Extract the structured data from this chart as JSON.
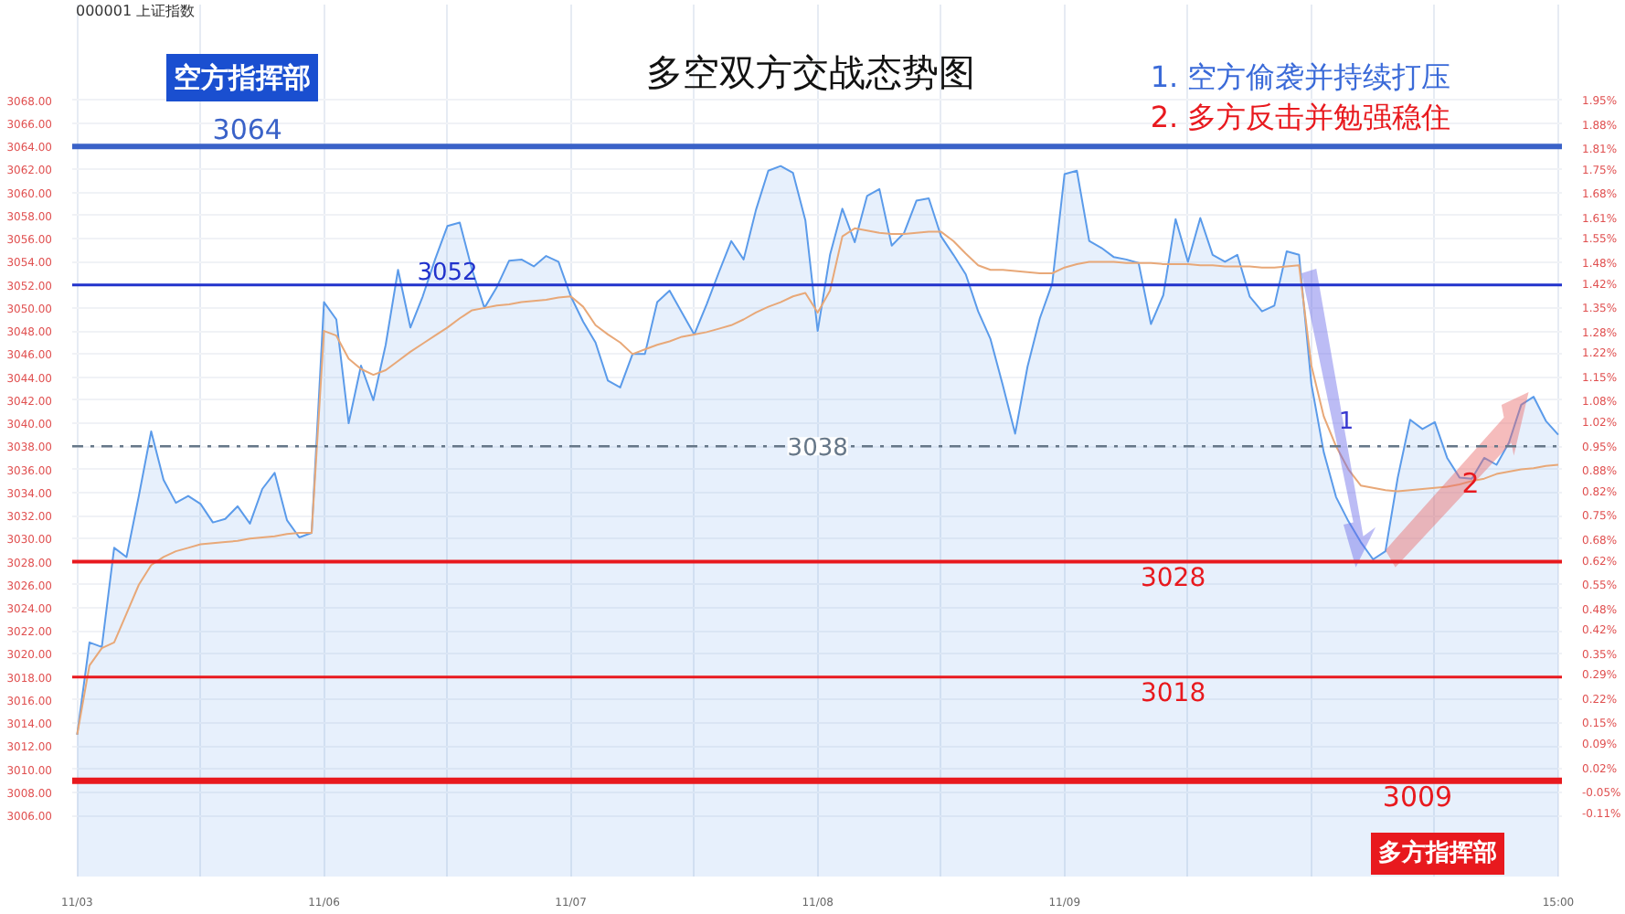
{
  "chart_data": {
    "type": "area",
    "title": "多空双方交战态势图",
    "subtitle": "000001 上证指数",
    "annotations": [
      "空方指挥部",
      "多方指挥部",
      "1. 空方偷袭并持续打压",
      "2. 多方反击并勉强稳住",
      "1",
      "2"
    ],
    "categories": [
      "11/03",
      null,
      null,
      null,
      null,
      null,
      null,
      null,
      null,
      null,
      null,
      null,
      null,
      null,
      null,
      null,
      null,
      null,
      null,
      null,
      "11/06",
      null,
      null,
      null,
      null,
      null,
      null,
      null,
      null,
      null,
      null,
      null,
      null,
      null,
      null,
      null,
      null,
      null,
      null,
      null,
      "11/07",
      null,
      null,
      null,
      null,
      null,
      null,
      null,
      null,
      null,
      null,
      null,
      null,
      null,
      null,
      null,
      null,
      null,
      null,
      null,
      "11/08",
      null,
      null,
      null,
      null,
      null,
      null,
      null,
      null,
      null,
      null,
      null,
      null,
      null,
      null,
      null,
      null,
      null,
      null,
      null,
      "11/09",
      null,
      null,
      null,
      null,
      null,
      null,
      null,
      null,
      null,
      null,
      null,
      null,
      null,
      null,
      null,
      null,
      null,
      null,
      null,
      null,
      null,
      null,
      null,
      null,
      null,
      null,
      null,
      null,
      null,
      null,
      null,
      null,
      null,
      null,
      null,
      null,
      null,
      null,
      null,
      "15:00"
    ],
    "series": [
      {
        "color": "#5b9bea",
        "values": [
          3013,
          3021,
          3020.6,
          3029.2,
          3028.4,
          3033.7,
          3039.3,
          3035.1,
          3033.1,
          3033.7,
          3033,
          3031.4,
          3031.7,
          3032.8,
          3031.3,
          3034.3,
          3035.7,
          3031.6,
          3030.1,
          3030.5,
          3050.5,
          3049,
          3040,
          3045,
          3042,
          3046.8,
          3053.3,
          3048.3,
          3051,
          3054.2,
          3057.1,
          3057.4,
          3053.3,
          3050,
          3051.8,
          3054.1,
          3054.2,
          3053.6,
          3054.5,
          3054,
          3051,
          3048.8,
          3047,
          3043.7,
          3043.1,
          3046,
          3046,
          3050.5,
          3051.5,
          3049.6,
          3047.7,
          3050.3,
          3053.1,
          3055.8,
          3054.2,
          3058.5,
          3061.9,
          3062.3,
          3061.7,
          3057.6,
          3048,
          3054.6,
          3058.6,
          3055.7,
          3059.7,
          3060.3,
          3055.4,
          3056.5,
          3059.3,
          3059.5,
          3056.2,
          3054.6,
          3052.9,
          3049.7,
          3047.3,
          3043.3,
          3039.1,
          3044.9,
          3049.1,
          3052.1,
          3061.6,
          3061.9,
          3055.8,
          3055.2,
          3054.4,
          3054.2,
          3053.9,
          3048.6,
          3051.1,
          3057.7,
          3054,
          3057.8,
          3054.6,
          3054,
          3054.6,
          3051,
          3049.7,
          3050.2,
          3054.9,
          3054.6,
          3043.4,
          3037.5,
          3033.6,
          3031.5,
          3029.7,
          3028.2,
          3028.9,
          3035.3,
          3040.3,
          3039.5,
          3040.1,
          3037,
          3035.3,
          3035.2,
          3037,
          3036.4,
          3038.3,
          3041.6,
          3042.3,
          3040.2,
          3039
        ]
      },
      {
        "type": "line",
        "color": "#e8a878",
        "values": [
          3013,
          3019,
          3020.5,
          3021,
          3023.5,
          3026,
          3027.7,
          3028.4,
          3028.9,
          3029.2,
          3029.5,
          3029.6,
          3029.7,
          3029.8,
          3030,
          3030.1,
          3030.2,
          3030.4,
          3030.5,
          3030.5,
          3048,
          3047.6,
          3045.6,
          3044.7,
          3044.2,
          3044.6,
          3045.4,
          3046.2,
          3046.9,
          3047.6,
          3048.3,
          3049.1,
          3049.8,
          3050,
          3050.2,
          3050.3,
          3050.5,
          3050.6,
          3050.7,
          3050.9,
          3051,
          3050.1,
          3048.5,
          3047.7,
          3047,
          3046,
          3046.4,
          3046.8,
          3047.1,
          3047.5,
          3047.7,
          3047.9,
          3048.2,
          3048.5,
          3049,
          3049.6,
          3050.1,
          3050.5,
          3051,
          3051.3,
          3049.6,
          3051.5,
          3056.2,
          3056.9,
          3056.7,
          3056.5,
          3056.4,
          3056.4,
          3056.5,
          3056.6,
          3056.6,
          3055.8,
          3054.7,
          3053.7,
          3053.3,
          3053.3,
          3053.2,
          3053.1,
          3053,
          3053,
          3053.5,
          3053.8,
          3054,
          3054,
          3054,
          3053.9,
          3053.9,
          3053.9,
          3053.8,
          3053.8,
          3053.8,
          3053.7,
          3053.7,
          3053.6,
          3053.6,
          3053.6,
          3053.5,
          3053.5,
          3053.6,
          3053.7,
          3045,
          3040.6,
          3038,
          3036,
          3034.6,
          3034.4,
          3034.2,
          3034.1,
          3034.2,
          3034.3,
          3034.4,
          3034.5,
          3034.7,
          3035,
          3035.2,
          3035.6,
          3035.8,
          3036,
          3036.1,
          3036.3,
          3036.4
        ]
      }
    ],
    "ylim": [
      3000.7,
      3076.3
    ],
    "yticks": [
      {
        "value": 3006,
        "label": "3006.00"
      },
      {
        "value": 3008,
        "label": "3008.00"
      },
      {
        "value": 3010,
        "label": "3010.00"
      },
      {
        "value": 3012,
        "label": "3012.00"
      },
      {
        "value": 3014,
        "label": "3014.00"
      },
      {
        "value": 3016,
        "label": "3016.00"
      },
      {
        "value": 3018,
        "label": "3018.00"
      },
      {
        "value": 3020,
        "label": "3020.00"
      },
      {
        "value": 3022,
        "label": "3022.00"
      },
      {
        "value": 3024,
        "label": "3024.00"
      },
      {
        "value": 3026,
        "label": "3026.00"
      },
      {
        "value": 3028,
        "label": "3028.00"
      },
      {
        "value": 3030,
        "label": "3030.00"
      },
      {
        "value": 3032,
        "label": "3032.00"
      },
      {
        "value": 3034,
        "label": "3034.00"
      },
      {
        "value": 3036,
        "label": "3036.00"
      },
      {
        "value": 3038,
        "label": "3038.00"
      },
      {
        "value": 3040,
        "label": "3040.00"
      },
      {
        "value": 3042,
        "label": "3042.00"
      },
      {
        "value": 3044,
        "label": "3044.00"
      },
      {
        "value": 3046,
        "label": "3046.00"
      },
      {
        "value": 3048,
        "label": "3048.00"
      },
      {
        "value": 3050,
        "label": "3050.00"
      },
      {
        "value": 3052,
        "label": "3052.00"
      },
      {
        "value": 3054,
        "label": "3054.00"
      },
      {
        "value": 3056,
        "label": "3056.00"
      },
      {
        "value": 3058,
        "label": "3058.00"
      },
      {
        "value": 3060,
        "label": "3060.00"
      },
      {
        "value": 3062,
        "label": "3062.00"
      },
      {
        "value": 3064,
        "label": "3064.00"
      },
      {
        "value": 3066,
        "label": "3066.00"
      },
      {
        "value": 3068,
        "label": "3068.00"
      }
    ],
    "y2lim": [
      -0.29,
      2.23
    ],
    "y2ticks": [
      {
        "value": -0.11,
        "label": "-0.11%"
      },
      {
        "value": -0.05,
        "label": "-0.05%"
      },
      {
        "value": 0.02,
        "label": "0.02%"
      },
      {
        "value": 0.09,
        "label": "0.09%"
      },
      {
        "value": 0.15,
        "label": "0.15%"
      },
      {
        "value": 0.22,
        "label": "0.22%"
      },
      {
        "value": 0.29,
        "label": "0.29%"
      },
      {
        "value": 0.35,
        "label": "0.35%"
      },
      {
        "value": 0.42,
        "label": "0.42%"
      },
      {
        "value": 0.48,
        "label": "0.48%"
      },
      {
        "value": 0.55,
        "label": "0.55%"
      },
      {
        "value": 0.62,
        "label": "0.62%"
      },
      {
        "value": 0.68,
        "label": "0.68%"
      },
      {
        "value": 0.75,
        "label": "0.75%"
      },
      {
        "value": 0.82,
        "label": "0.82%"
      },
      {
        "value": 0.88,
        "label": "0.88%"
      },
      {
        "value": 0.95,
        "label": "0.95%"
      },
      {
        "value": 1.02,
        "label": "1.02%"
      },
      {
        "value": 1.08,
        "label": "1.08%"
      },
      {
        "value": 1.15,
        "label": "1.15%"
      },
      {
        "value": 1.22,
        "label": "1.22%"
      },
      {
        "value": 1.28,
        "label": "1.28%"
      },
      {
        "value": 1.35,
        "label": "1.35%"
      },
      {
        "value": 1.42,
        "label": "1.42%"
      },
      {
        "value": 1.48,
        "label": "1.48%"
      },
      {
        "value": 1.55,
        "label": "1.55%"
      },
      {
        "value": 1.61,
        "label": "1.61%"
      },
      {
        "value": 1.68,
        "label": "1.68%"
      },
      {
        "value": 1.75,
        "label": "1.75%"
      },
      {
        "value": 1.81,
        "label": "1.81%"
      },
      {
        "value": 1.88,
        "label": "1.88%"
      },
      {
        "value": 1.95,
        "label": "1.95%"
      }
    ],
    "ref_lines": [
      {
        "axis": "y",
        "value": 3064,
        "label": "3064",
        "color": "#3a62c8"
      },
      {
        "axis": "y",
        "value": 3052,
        "label": "3052",
        "color": "#2233cc"
      },
      {
        "axis": "y",
        "value": 3038,
        "label": "3038",
        "color": "#667788",
        "line_style": "dashed"
      },
      {
        "axis": "y",
        "value": 3028,
        "label": "3028",
        "color": "#e8191e"
      },
      {
        "axis": "y",
        "value": 3018,
        "label": "3018",
        "color": "#e8191e"
      },
      {
        "axis": "y",
        "value": 3009,
        "label": "3009",
        "color": "#e8191e"
      }
    ],
    "grid": true,
    "marker": "none",
    "line_style": "solid"
  }
}
